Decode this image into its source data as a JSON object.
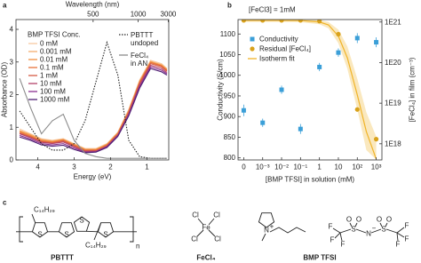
{
  "chart_data": [
    {
      "type": "line",
      "panel": "a",
      "x2label": "Wavelength (nm)",
      "xlabel": "Energy (eV)",
      "ylabel": "Absorbance (OD)",
      "legend_title": "BMP TFSI Conc.",
      "x": [
        4.5,
        4.2,
        3.9,
        3.6,
        3.3,
        3.0,
        2.7,
        2.4,
        2.1,
        1.8,
        1.5,
        1.2,
        0.9,
        0.6,
        0.45
      ],
      "xlim": [
        4.6,
        0.4
      ],
      "xticks": [
        4,
        3,
        2,
        1
      ],
      "x2ticks": [
        500,
        1000,
        3000
      ],
      "ylim": [
        0,
        4.3
      ],
      "yticks": [
        0,
        1,
        2,
        3,
        4
      ],
      "series": [
        {
          "name": "0 mM",
          "color": "#f8c9a0",
          "values": [
            0.95,
            0.8,
            0.65,
            0.6,
            0.65,
            0.5,
            0.35,
            0.35,
            0.5,
            0.85,
            1.55,
            2.45,
            3.05,
            2.95,
            2.8
          ]
        },
        {
          "name": "0.001 mM",
          "color": "#f5ad6e",
          "values": [
            0.9,
            0.78,
            0.63,
            0.58,
            0.63,
            0.48,
            0.33,
            0.33,
            0.48,
            0.83,
            1.52,
            2.42,
            3.02,
            2.92,
            2.78
          ]
        },
        {
          "name": "0.01 mM",
          "color": "#f08f3e",
          "values": [
            0.88,
            0.75,
            0.6,
            0.56,
            0.62,
            0.47,
            0.32,
            0.32,
            0.47,
            0.82,
            1.5,
            2.4,
            3.0,
            2.9,
            2.76
          ]
        },
        {
          "name": "0.1 mM",
          "color": "#e8733a",
          "values": [
            0.85,
            0.72,
            0.58,
            0.54,
            0.6,
            0.45,
            0.3,
            0.3,
            0.45,
            0.8,
            1.48,
            2.38,
            2.98,
            2.88,
            2.74
          ]
        },
        {
          "name": "1 mM",
          "color": "#d65a45",
          "values": [
            0.82,
            0.7,
            0.56,
            0.52,
            0.58,
            0.43,
            0.28,
            0.28,
            0.43,
            0.78,
            1.45,
            2.35,
            2.95,
            2.85,
            2.72
          ]
        },
        {
          "name": "10 mM",
          "color": "#b4436a",
          "values": [
            0.8,
            0.68,
            0.54,
            0.5,
            0.55,
            0.4,
            0.26,
            0.27,
            0.42,
            0.76,
            1.42,
            2.3,
            2.9,
            2.8,
            2.68
          ]
        },
        {
          "name": "100 mM",
          "color": "#8a3090",
          "values": [
            0.75,
            0.64,
            0.5,
            0.46,
            0.5,
            0.36,
            0.24,
            0.25,
            0.4,
            0.74,
            1.38,
            2.25,
            2.85,
            2.75,
            2.64
          ]
        },
        {
          "name": "1000 mM",
          "color": "#4e1f74",
          "values": [
            0.7,
            0.6,
            0.46,
            0.42,
            0.45,
            0.32,
            0.22,
            0.24,
            0.38,
            0.72,
            1.35,
            2.2,
            2.8,
            2.7,
            2.6
          ]
        },
        {
          "name": "PBTTT undoped",
          "color": "#222222",
          "dash": "dotted",
          "values": [
            1.5,
            1.0,
            0.5,
            0.3,
            0.3,
            0.5,
            1.2,
            2.4,
            3.6,
            2.6,
            0.6,
            0.1,
            0.05,
            0.05,
            0.05
          ]
        },
        {
          "name": "FeCl₄ in AN",
          "color": "#8c8c8c",
          "values": [
            2.5,
            1.6,
            0.8,
            1.2,
            1.4,
            0.6,
            0.2,
            0.1,
            0.05,
            0.05,
            0.05,
            0.05,
            0.05,
            0.05,
            0.05
          ]
        }
      ]
    },
    {
      "type": "scatter",
      "panel": "b",
      "title": "[FeCl3] = 1mM",
      "xlabel": "[BMP TFSI] in solution (mM)",
      "ylabel": "Conductivity (S/cm)",
      "y2label": "[FeCl₄] in film (cm⁻³)",
      "xscale": "log",
      "xlim": [
        5e-05,
        2000
      ],
      "xticks": [
        0,
        {
          "value": 0.001,
          "label": "10⁻³"
        },
        {
          "value": 0.01,
          "label": "10⁻²"
        },
        {
          "value": 0.1,
          "label": "10⁻¹"
        },
        1,
        10,
        {
          "value": 100,
          "label": "10²"
        },
        {
          "value": 1000,
          "label": "10³"
        }
      ],
      "ylim": [
        795,
        1135
      ],
      "yticks": [
        800,
        850,
        900,
        950,
        1000,
        1050,
        1100
      ],
      "y2scale": "log",
      "y2lim": [
        4e+17,
        1.15e+21
      ],
      "y2ticks": [
        {
          "value": 1e+18,
          "label": "1E18"
        },
        {
          "value": 1e+19,
          "label": "1E19"
        },
        {
          "value": 1e+20,
          "label": "1E20"
        },
        {
          "value": 1e+21,
          "label": "1E21"
        }
      ],
      "x": [
        0,
        0.001,
        0.01,
        0.1,
        1,
        10,
        100,
        1000
      ],
      "series": [
        {
          "name": "Conductivity",
          "color": "#3b9fd8",
          "marker": "square",
          "values": [
            915,
            885,
            965,
            870,
            1020,
            1055,
            1090,
            1080
          ],
          "errors": [
            14,
            10,
            10,
            12,
            10,
            10,
            12,
            12
          ]
        },
        {
          "name": "Residual [FeCl₄]",
          "color": "#d9a21b",
          "marker": "circle",
          "axis": "y2",
          "values": [
            1.1e+21,
            1.1e+21,
            1.1e+21,
            1.1e+21,
            1.05e+21,
            5e+20,
            7e+18,
            1.3e+18
          ]
        },
        {
          "name": "Isotherm fit",
          "color": "#f0b429",
          "marker": "line",
          "axis": "y2",
          "x": [
            0,
            0.001,
            0.01,
            0.1,
            1,
            3,
            10,
            30,
            100,
            300,
            1000
          ],
          "values": [
            1.1e+21,
            1.1e+21,
            1.1e+21,
            1.09e+21,
            1e+21,
            8.5e+20,
            4.5e+20,
            1.3e+20,
            1.6e+19,
            2e+18,
            4.2e+17
          ],
          "upper": [
            1.2e+21,
            1.2e+21,
            1.2e+21,
            1.19e+21,
            1.12e+21,
            1e+21,
            6.5e+20,
            2.5e+20,
            4e+19,
            6e+18,
            1.5e+18
          ],
          "lower": [
            1e+21,
            1e+21,
            1e+21,
            9.9e+20,
            8.8e+20,
            7e+20,
            3e+20,
            7e+19,
            7e+18,
            7e+17,
            4.1e+17
          ]
        }
      ]
    }
  ],
  "panel_c": {
    "label": "c",
    "structures": [
      {
        "name": "PBTTT",
        "atoms": [
          "S",
          "S",
          "S",
          "S"
        ],
        "substituents": [
          "C₁₄H₂₉",
          "C₁₄H₂₉"
        ],
        "repeat": "n"
      },
      {
        "name": "FeCl₄",
        "atoms": [
          "Cl",
          "Cl",
          "Fe",
          "Cl",
          "Cl"
        ]
      },
      {
        "name": "BMP TFSI",
        "atoms": [
          "N",
          "+",
          "F",
          "F",
          "F",
          "S",
          "O",
          "O",
          "N",
          "−",
          "S",
          "O",
          "O",
          "F",
          "F",
          "F"
        ]
      }
    ]
  }
}
